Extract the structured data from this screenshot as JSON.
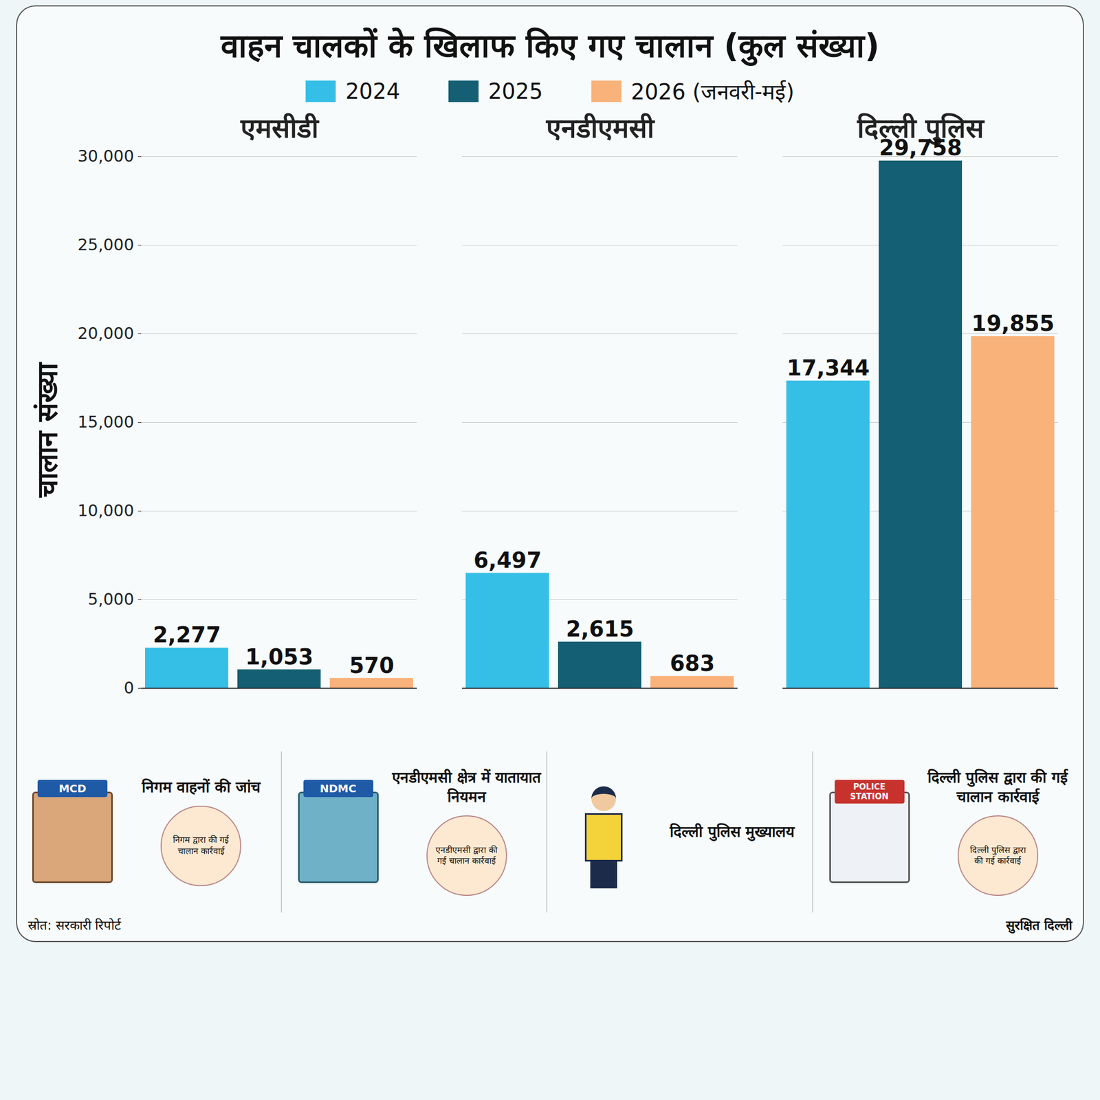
{
  "chart_data": {
    "type": "bar",
    "title": "वाहन चालकों के खिलाफ किए गए चालान (कुल संख्या)",
    "y_label": "चालान संख्या",
    "categories": [
      "एमसीडी",
      "एनडीएमसी",
      "दिल्ली पुलिस"
    ],
    "series": [
      {
        "name": "2024",
        "color": "#35bfe6",
        "values": [
          2277,
          6497,
          17344
        ],
        "value_labels": [
          "2,277",
          "6,497",
          "17,344"
        ]
      },
      {
        "name": "2025",
        "color": "#145f73",
        "values": [
          1053,
          2615,
          29758
        ],
        "value_labels": [
          "1,053",
          "2,615",
          "29,758"
        ]
      },
      {
        "name": "2026 (जनवरी-मई)",
        "color": "#f9b27a",
        "values": [
          570,
          683,
          19855
        ],
        "value_labels": [
          "570",
          "683",
          "19,855"
        ]
      }
    ],
    "ylim": [
      0,
      30000
    ],
    "yticks": [
      0,
      {
        "value": 5000,
        "label": "5,000"
      },
      {
        "value": 10000,
        "label": "10,000"
      },
      {
        "value": 15000,
        "label": "15,000"
      },
      {
        "value": 20000,
        "label": "20,000"
      },
      {
        "value": 25000,
        "label": "25,000"
      },
      {
        "value": 30000,
        "label": "30,000"
      }
    ],
    "grid": true,
    "legend": "top",
    "data_labels": true
  },
  "footer": {
    "panels": [
      {
        "sign": "MCD",
        "caption": "निगम वाहनों की जांच",
        "badge": "निगम द्वारा की गई चालान कार्रवाई"
      },
      {
        "sign": "NDMC",
        "caption": "एनडीएमसी क्षेत्र में यातायात नियमन",
        "badge": "एनडीएमसी द्वारा की गई चालान कार्रवाई"
      },
      {
        "caption": "दिल्ली पुलिस मुख्यालय"
      },
      {
        "sign": "POLICE STATION",
        "caption": "दिल्ली पुलिस द्वारा की गई चालान कार्रवाई",
        "badge": "दिल्ली पुलिस द्वारा की गई कार्रवाई"
      }
    ],
    "source": "स्रोत: सरकारी रिपोर्ट",
    "brand": "सुरक्षित दिल्ली"
  }
}
